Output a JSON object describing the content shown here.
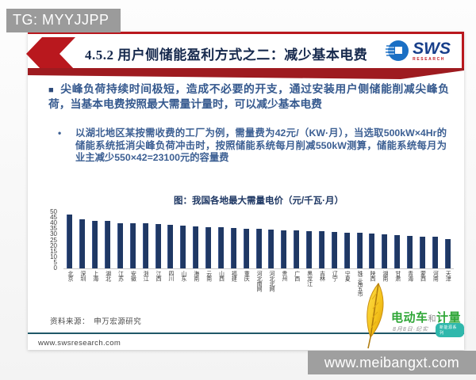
{
  "watermarks": {
    "top": "TG: MYYJJPP",
    "bottom": "www.meibangxt.com"
  },
  "header": {
    "title": "4.5.2 用户侧储能盈利方式之二：减少基本电费",
    "logo_text": "SWS",
    "logo_subtext": "RESEARCH"
  },
  "body": {
    "bullet1": "尖峰负荷持续时间极短，造成不必要的开支，通过安装用户侧储能削减尖峰负荷，当基本电费按照最大需量计量时，可以减少基本电费",
    "bullet2": "以湖北地区某按需收费的工厂为例，需量费为42元/（KW·月），当选取500kW×4Hr的储能系统抵消尖峰负荷冲击时，按照储能系统每月削减550kW测算，储能系统每月为业主减少550×42=23100元的容量费"
  },
  "chart_data": {
    "type": "bar",
    "title": "图：我国各地最大需量电价（元/千瓦·月）",
    "categories": [
      "北京",
      "深圳",
      "上海",
      "湖北",
      "江苏",
      "安徽",
      "浙江",
      "江西",
      "四川",
      "山东",
      "海南",
      "云南",
      "山西",
      "福建",
      "重庆",
      "河北南网",
      "河北北网",
      "贵州",
      "广西",
      "黑龙江",
      "吉林",
      "辽宁",
      "宁夏",
      "珠三角五市",
      "陕西",
      "湖南",
      "甘肃",
      "青海",
      "蒙西",
      "河南",
      "天津"
    ],
    "values": [
      48,
      44,
      42,
      42,
      40,
      40,
      40,
      39.5,
      39,
      38,
      37.5,
      37,
      36.5,
      36,
      35.5,
      35,
      34.5,
      34,
      33.5,
      33,
      33,
      32.5,
      32,
      31.5,
      31,
      30,
      29.5,
      29,
      28.5,
      28,
      26
    ],
    "xlabel": "",
    "ylabel": "",
    "ylim": [
      0,
      50
    ],
    "ytick_step": 5,
    "grid": false,
    "legend": "none",
    "bar_color": "#1f3864"
  },
  "footer": {
    "source": "资料来源：　申万宏源研究",
    "website": "www.swsresearch.com"
  },
  "channel_logo": {
    "name_left": "电动车",
    "name_mid": "和",
    "name_right": "计量",
    "subtitle": "8月8日·纪实",
    "badge": "新能源系列"
  },
  "colors": {
    "accent_red": "#b9181e",
    "title_navy": "#16294d",
    "text_blue": "#35598e",
    "bar_navy": "#1f3864",
    "logo_green": "#2fa637",
    "divider_teal": "#1f5868"
  }
}
